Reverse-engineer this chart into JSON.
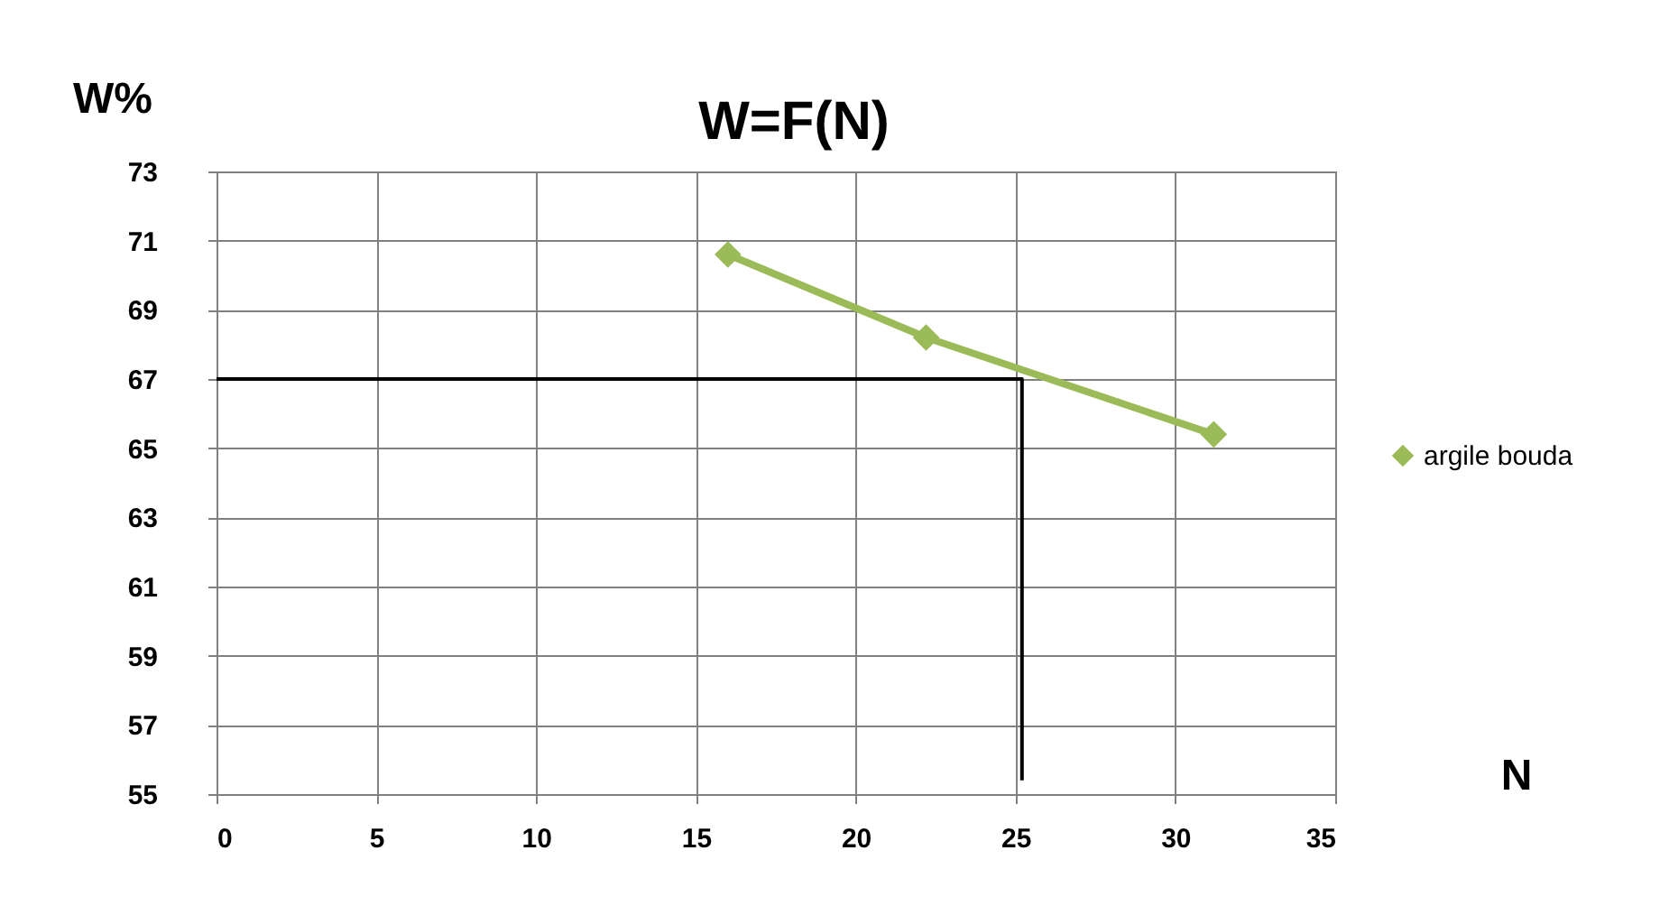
{
  "chart_data": {
    "type": "line",
    "title": "W=F(N)",
    "xlabel": "N",
    "ylabel": "W%",
    "xlim": [
      0,
      35
    ],
    "xticks": [
      0,
      5,
      10,
      15,
      20,
      25,
      30,
      35
    ],
    "ylim": [
      55,
      73
    ],
    "yticks": [
      55,
      57,
      59,
      61,
      63,
      65,
      67,
      69,
      71,
      73
    ],
    "grid": true,
    "legend": "right",
    "marker": "diamond",
    "series": [
      {
        "name": "argile bouda",
        "color": "#9bbb59",
        "x": [
          16,
          22.2,
          31.2
        ],
        "values": [
          70.6,
          68.2,
          65.4
        ]
      },
      {
        "color": "#000000",
        "marker": "none",
        "x": [
          0,
          25.2,
          25.2
        ],
        "values": [
          67,
          67,
          55.4
        ]
      }
    ]
  }
}
